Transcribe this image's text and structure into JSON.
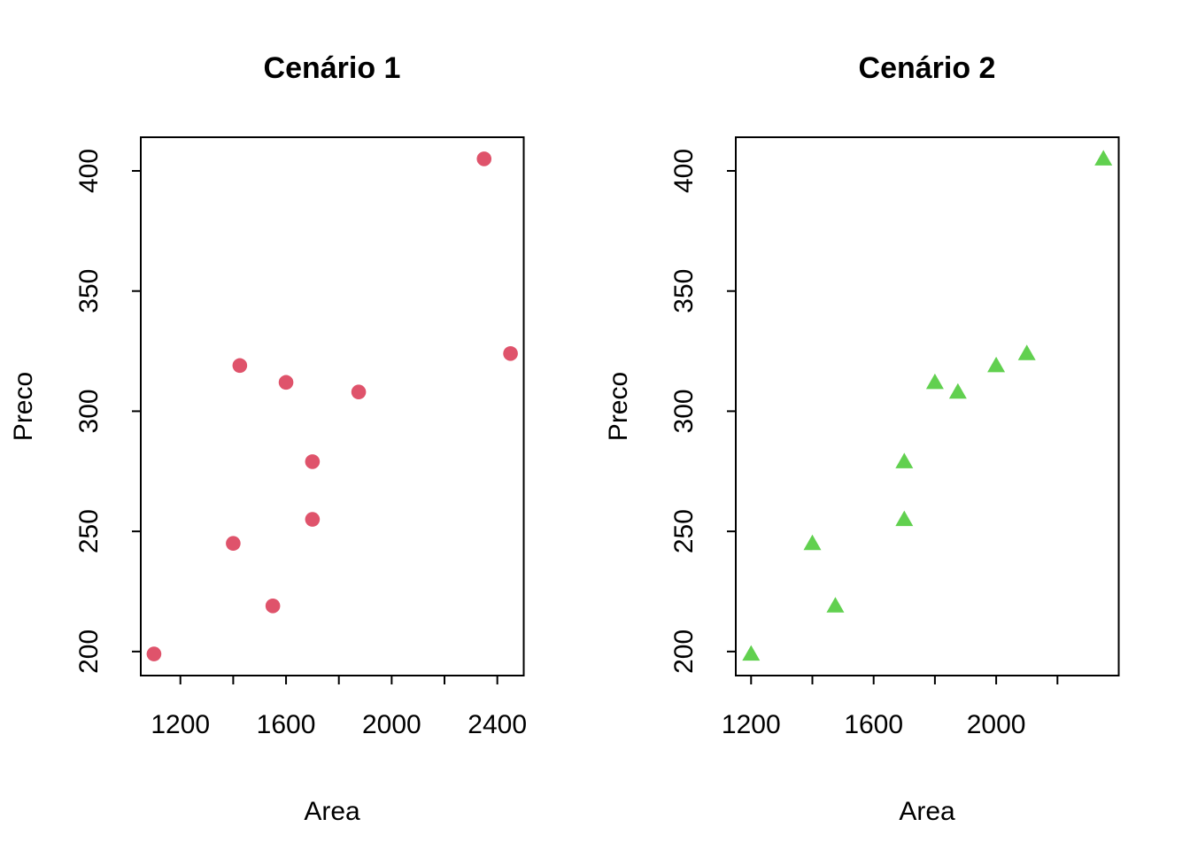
{
  "figure": {
    "background": "#ffffff",
    "frame_color": "#000000",
    "text_color": "#000000"
  },
  "chart_data": [
    {
      "type": "scatter",
      "title": "Cenário 1",
      "xlabel": "Area",
      "ylabel": "Preco",
      "marker": "circle",
      "marker_color": "#DF536B",
      "grid": false,
      "legend": null,
      "xlim": [
        1050,
        2500
      ],
      "ylim": [
        190,
        414
      ],
      "x_ticks": [
        1200,
        1400,
        1600,
        1800,
        2000,
        2200,
        2400
      ],
      "x_tick_labels": [
        1200,
        1600,
        2000,
        2400
      ],
      "y_ticks": [
        200,
        250,
        300,
        350,
        400
      ],
      "y_tick_labels": [
        200,
        250,
        300,
        350,
        400
      ],
      "points": [
        {
          "x": 1100,
          "y": 199
        },
        {
          "x": 1400,
          "y": 245
        },
        {
          "x": 1425,
          "y": 319
        },
        {
          "x": 1550,
          "y": 219
        },
        {
          "x": 1600,
          "y": 312
        },
        {
          "x": 1700,
          "y": 255
        },
        {
          "x": 1700,
          "y": 279
        },
        {
          "x": 1875,
          "y": 308
        },
        {
          "x": 2350,
          "y": 405
        },
        {
          "x": 2450,
          "y": 324
        }
      ]
    },
    {
      "type": "scatter",
      "title": "Cenário 2",
      "xlabel": "Area",
      "ylabel": "Preco",
      "marker": "triangle",
      "marker_color": "#61D04F",
      "grid": false,
      "legend": null,
      "xlim": [
        1150,
        2400
      ],
      "ylim": [
        190,
        414
      ],
      "x_ticks": [
        1200,
        1400,
        1600,
        1800,
        2000,
        2200
      ],
      "x_tick_labels": [
        1200,
        1600,
        2000
      ],
      "y_ticks": [
        200,
        250,
        300,
        350,
        400
      ],
      "y_tick_labels": [
        200,
        250,
        300,
        350,
        400
      ],
      "points": [
        {
          "x": 1200,
          "y": 199
        },
        {
          "x": 1400,
          "y": 245
        },
        {
          "x": 1475,
          "y": 219
        },
        {
          "x": 1700,
          "y": 255
        },
        {
          "x": 1700,
          "y": 279
        },
        {
          "x": 1800,
          "y": 312
        },
        {
          "x": 1875,
          "y": 308
        },
        {
          "x": 2000,
          "y": 319
        },
        {
          "x": 2100,
          "y": 324
        },
        {
          "x": 2350,
          "y": 405
        }
      ]
    }
  ]
}
